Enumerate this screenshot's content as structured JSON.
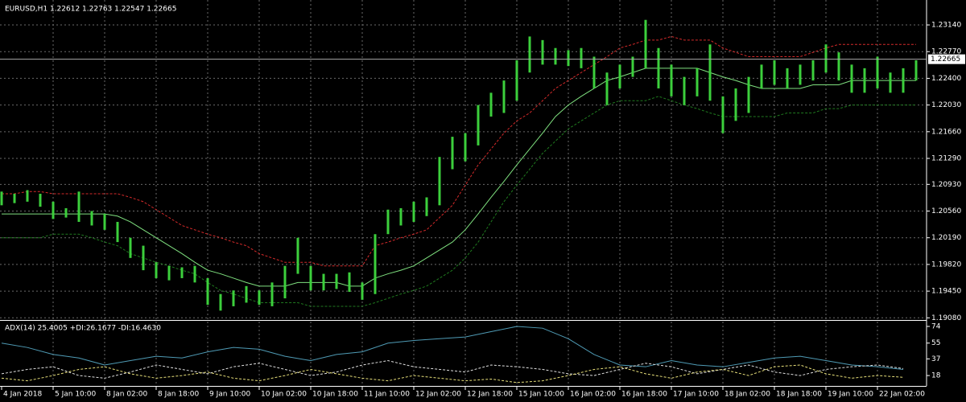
{
  "chart_data": [
    {
      "type": "ohlc",
      "title": "EURUSD,H1  1.22612 1.22763 1.22547 1.22665",
      "categories": [
        "4 Jan 2018",
        null,
        null,
        null,
        "5 Jan 10:00",
        null,
        null,
        null,
        "8 Jan 02:00",
        null,
        null,
        null,
        "8 Jan 18:00",
        null,
        null,
        null,
        "9 Jan 10:00",
        null,
        null,
        null,
        "10 Jan 02:00",
        null,
        null,
        null,
        "10 Jan 18:00",
        null,
        null,
        null,
        "11 Jan 10:00",
        null,
        null,
        null,
        "12 Jan 02:00",
        null,
        null,
        null,
        "12 Jan 18:00",
        null,
        null,
        null,
        "15 Jan 10:00",
        null,
        null,
        null,
        "16 Jan 02:00",
        null,
        null,
        null,
        "16 Jan 18:00",
        null,
        null,
        null,
        "17 Jan 10:00",
        null,
        null,
        null,
        "18 Jan 02:00",
        null,
        null,
        null,
        "18 Jan 18:00",
        null,
        null,
        null,
        "19 Jan 10:00",
        null,
        null,
        null,
        "22 Jan 02:00",
        null,
        null,
        null
      ],
      "color": "#3ccf3c",
      "high": [
        1.2083,
        1.208,
        1.2085,
        1.208,
        1.2069,
        1.206,
        1.2083,
        1.2056,
        1.2052,
        1.2041,
        1.2019,
        1.2008,
        1.1985,
        1.198,
        1.1978,
        1.198,
        1.1963,
        1.1941,
        1.1946,
        1.1952,
        1.1946,
        1.1957,
        1.198,
        1.2019,
        1.198,
        1.1969,
        1.1969,
        1.1971,
        1.1957,
        1.2024,
        1.2058,
        1.206,
        1.2069,
        1.2075,
        1.2131,
        1.2159,
        1.2164,
        1.2203,
        1.222,
        1.2237,
        1.2265,
        1.2298,
        1.2293,
        1.2282,
        1.2279,
        1.2282,
        1.227,
        1.2248,
        1.2259,
        1.227,
        1.2321,
        1.2282,
        1.2259,
        1.2242,
        1.2254,
        1.2287,
        1.2215,
        1.2226,
        1.2242,
        1.2259,
        1.2265,
        1.2254,
        1.2259,
        1.2265,
        1.2287,
        1.2276,
        1.2259,
        1.2254,
        1.227,
        1.2248,
        1.2254,
        1.2265
      ],
      "low": [
        1.2064,
        1.2067,
        1.2069,
        1.2062,
        1.2045,
        1.2047,
        1.2041,
        1.2036,
        1.203,
        1.2013,
        1.1991,
        1.1974,
        1.1963,
        1.196,
        1.1963,
        1.1957,
        1.1926,
        1.1918,
        1.1924,
        1.1929,
        1.1926,
        1.1924,
        1.1935,
        1.1969,
        1.1946,
        1.1946,
        1.1948,
        1.1944,
        1.1933,
        1.1941,
        1.2024,
        1.2036,
        1.2041,
        1.2049,
        1.2064,
        1.2114,
        1.2125,
        1.2147,
        1.2187,
        1.2192,
        1.2209,
        1.2248,
        1.2259,
        1.2259,
        1.2257,
        1.2254,
        1.2226,
        1.2203,
        1.2226,
        1.2242,
        1.2254,
        1.2226,
        1.2215,
        1.2203,
        1.2215,
        1.2209,
        1.2164,
        1.2181,
        1.2192,
        1.2226,
        1.2231,
        1.2226,
        1.2231,
        1.2237,
        1.2248,
        1.2237,
        1.222,
        1.222,
        1.2226,
        1.222,
        1.222,
        1.2237
      ],
      "series": [
        {
          "color": "#d42a2a",
          "dash": true,
          "values": [
            1.208,
            1.208,
            1.2083,
            1.2083,
            1.208,
            1.208,
            1.208,
            1.208,
            1.208,
            1.208,
            1.2075,
            1.2069,
            1.2058,
            1.2047,
            1.2036,
            1.203,
            1.2024,
            1.2019,
            1.2013,
            1.2008,
            1.1997,
            1.1991,
            1.1985,
            1.1985,
            1.1985,
            1.198,
            1.198,
            1.198,
            1.198,
            1.2008,
            1.2013,
            1.2019,
            1.2024,
            1.203,
            1.2047,
            1.2064,
            1.2092,
            1.212,
            1.2142,
            1.2164,
            1.2181,
            1.2192,
            1.2209,
            1.2226,
            1.2237,
            1.2248,
            1.2259,
            1.227,
            1.2282,
            1.2287,
            1.2293,
            1.2293,
            1.2298,
            1.2293,
            1.2293,
            1.2293,
            1.2282,
            1.2276,
            1.227,
            1.227,
            1.227,
            1.227,
            1.227,
            1.2276,
            1.2282,
            1.2287,
            1.2287,
            1.2287,
            1.2287,
            1.2287,
            1.2287,
            1.2287
          ]
        },
        {
          "color": "#7fe07f",
          "dash": false,
          "values": [
            1.2052,
            1.2052,
            1.2052,
            1.2052,
            1.2052,
            1.2052,
            1.2052,
            1.2052,
            1.2052,
            1.2049,
            1.2041,
            1.203,
            1.2019,
            1.2008,
            1.1997,
            1.1985,
            1.1974,
            1.1969,
            1.1963,
            1.1957,
            1.1952,
            1.1952,
            1.1952,
            1.1957,
            1.1957,
            1.1957,
            1.1957,
            1.1952,
            1.1952,
            1.1963,
            1.1969,
            1.1974,
            1.198,
            1.1991,
            1.2002,
            1.2013,
            1.203,
            1.2052,
            1.2075,
            1.2097,
            1.212,
            1.2142,
            1.2164,
            1.2187,
            1.2203,
            1.2215,
            1.2226,
            1.2237,
            1.2242,
            1.2248,
            1.2254,
            1.2254,
            1.2254,
            1.2254,
            1.2254,
            1.2248,
            1.2242,
            1.2237,
            1.2231,
            1.2226,
            1.2226,
            1.2226,
            1.2226,
            1.2231,
            1.2231,
            1.2231,
            1.2237,
            1.2237,
            1.2237,
            1.2237,
            1.2237,
            1.2237
          ]
        },
        {
          "color": "#1f7a1f",
          "dash": true,
          "values": [
            1.2019,
            1.2019,
            1.2019,
            1.2019,
            1.2024,
            1.2024,
            1.2024,
            1.2019,
            1.2013,
            1.2008,
            1.1997,
            1.1991,
            1.1985,
            1.198,
            1.1974,
            1.1969,
            1.1957,
            1.1946,
            1.1941,
            1.1935,
            1.1929,
            1.1929,
            1.1929,
            1.1929,
            1.1924,
            1.1924,
            1.1924,
            1.1924,
            1.1924,
            1.1929,
            1.1935,
            1.1941,
            1.1946,
            1.1952,
            1.1963,
            1.1974,
            1.1991,
            1.2013,
            1.2041,
            1.2069,
            1.2092,
            1.2114,
            1.2136,
            1.2153,
            1.217,
            1.2181,
            1.2192,
            1.2203,
            1.2209,
            1.2209,
            1.2209,
            1.2215,
            1.2209,
            1.2203,
            1.2198,
            1.2192,
            1.2187,
            1.2187,
            1.2187,
            1.2187,
            1.2187,
            1.2192,
            1.2192,
            1.2192,
            1.2198,
            1.2198,
            1.2203,
            1.2203,
            1.2203,
            1.2203,
            1.2203,
            1.2203
          ]
        }
      ],
      "ylim": [
        1.1905,
        1.2343
      ],
      "yticks": [
        {
          "value": 1.1908,
          "label": "1.19080"
        },
        {
          "value": 1.1945,
          "label": "1.19450"
        },
        {
          "value": 1.1982,
          "label": "1.19820"
        },
        {
          "value": 1.2019,
          "label": "1.20190"
        },
        {
          "value": 1.2056,
          "label": "1.20560"
        },
        {
          "value": 1.2093,
          "label": "1.20930"
        },
        {
          "value": 1.2129,
          "label": "1.21290"
        },
        {
          "value": 1.2166,
          "label": "1.21660"
        },
        {
          "value": 1.2203,
          "label": "1.22030"
        },
        {
          "value": 1.224,
          "label": "1.22400"
        },
        {
          "value": 1.2277,
          "label": "1.22770"
        },
        {
          "value": 1.2314,
          "label": "1.23140"
        }
      ],
      "current_price": {
        "value": 1.22665,
        "label": "1.22665"
      },
      "grid": true
    },
    {
      "type": "line",
      "title": "ADX(14) 25.4005 +DI:26.1677 -DI:16.4630",
      "series": [
        {
          "color": "#4f9bb5",
          "dash": false,
          "values": [
            55,
            50,
            42,
            38,
            30,
            35,
            40,
            38,
            45,
            50,
            48,
            40,
            35,
            42,
            45,
            55,
            58,
            60,
            62,
            68,
            74,
            72,
            60,
            42,
            30,
            28,
            35,
            30,
            28,
            33,
            38,
            40,
            35,
            30,
            28,
            25
          ]
        },
        {
          "color": "#e0e0e0",
          "dash": true,
          "values": [
            20,
            25,
            28,
            18,
            15,
            22,
            30,
            25,
            20,
            28,
            32,
            25,
            18,
            22,
            30,
            35,
            28,
            25,
            22,
            30,
            28,
            25,
            20,
            18,
            25,
            32,
            28,
            20,
            25,
            30,
            22,
            18,
            25,
            28,
            30,
            26
          ]
        },
        {
          "color": "#e8e07a",
          "dash": true,
          "values": [
            15,
            12,
            18,
            25,
            28,
            20,
            15,
            18,
            22,
            15,
            12,
            18,
            25,
            20,
            15,
            12,
            18,
            15,
            12,
            14,
            10,
            12,
            18,
            25,
            28,
            20,
            15,
            22,
            25,
            18,
            28,
            30,
            20,
            15,
            18,
            16
          ]
        }
      ],
      "ylim": [
        8,
        79.5
      ],
      "yticks": [
        74,
        55,
        37,
        18
      ]
    }
  ]
}
